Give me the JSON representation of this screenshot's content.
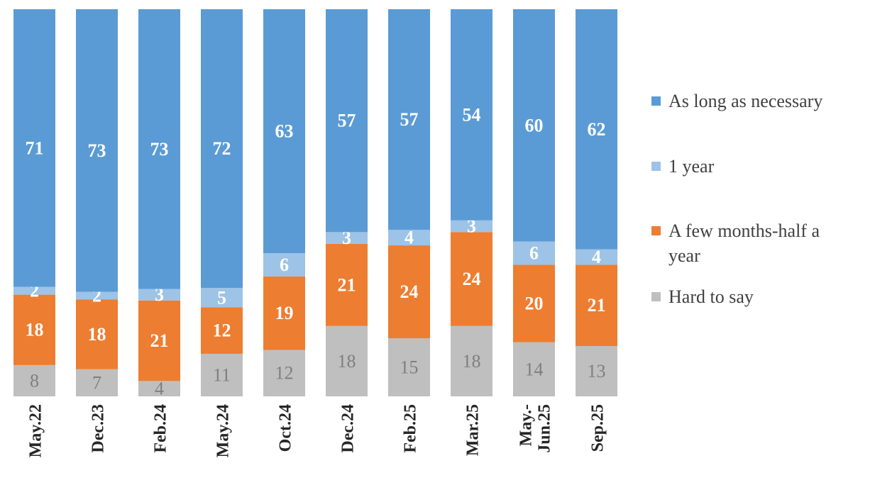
{
  "chart_data": {
    "type": "bar",
    "stacked": true,
    "normalized": true,
    "categories": [
      "May.22",
      "Dec.23",
      "Feb.24",
      "May.24",
      "Oct.24",
      "Dec.24",
      "Feb.25",
      "Mar.25",
      "May.-Jun.25",
      "Sep.25"
    ],
    "series": [
      {
        "name": "Hard to say",
        "color": "#BFBFBF",
        "values": [
          8,
          7,
          4,
          11,
          12,
          18,
          15,
          18,
          14,
          13
        ]
      },
      {
        "name": "A few months-half a year",
        "color": "#ED7D31",
        "values": [
          18,
          18,
          21,
          12,
          19,
          21,
          24,
          24,
          20,
          21
        ]
      },
      {
        "name": "1 year",
        "color": "#9DC3E6",
        "values": [
          2,
          2,
          3,
          5,
          6,
          3,
          4,
          3,
          6,
          4
        ]
      },
      {
        "name": "As long as necessary",
        "color": "#5B9BD5",
        "values": [
          71,
          73,
          73,
          72,
          63,
          57,
          57,
          54,
          60,
          62
        ]
      }
    ],
    "legend_order": [
      "As long as necessary",
      "1 year",
      "A few months-half a year",
      "Hard to say"
    ],
    "legend_position": "right",
    "title": "",
    "xlabel": "",
    "ylabel": "",
    "grid": false
  }
}
